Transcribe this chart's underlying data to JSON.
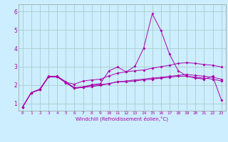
{
  "xlabel": "Windchill (Refroidissement éolien,°C)",
  "bg_color": "#cceeff",
  "line_color": "#aa00aa",
  "grid_color": "#aacccc",
  "xlim": [
    -0.5,
    23.5
  ],
  "ylim": [
    0.6,
    6.4
  ],
  "xticks": [
    0,
    1,
    2,
    3,
    4,
    5,
    6,
    7,
    8,
    9,
    10,
    11,
    12,
    13,
    14,
    15,
    16,
    17,
    18,
    19,
    20,
    21,
    22,
    23
  ],
  "yticks": [
    1,
    2,
    3,
    4,
    5,
    6
  ],
  "series": [
    {
      "x": [
        0,
        1,
        2,
        3,
        4,
        5,
        6,
        7,
        8,
        9,
        10,
        11,
        12,
        13,
        14,
        15,
        16,
        17,
        18,
        19,
        20,
        21,
        22,
        23
      ],
      "y": [
        0.8,
        1.58,
        1.75,
        2.45,
        2.45,
        2.15,
        2.05,
        2.22,
        2.28,
        2.32,
        2.5,
        2.65,
        2.72,
        2.78,
        2.82,
        2.92,
        3.0,
        3.08,
        3.18,
        3.22,
        3.18,
        3.12,
        3.08,
        2.98
      ]
    },
    {
      "x": [
        0,
        1,
        2,
        3,
        4,
        5,
        6,
        7,
        8,
        9,
        10,
        11,
        12,
        13,
        14,
        15,
        16,
        17,
        18,
        19,
        20,
        21,
        22,
        23
      ],
      "y": [
        0.8,
        1.58,
        1.78,
        2.48,
        2.48,
        2.18,
        1.82,
        1.88,
        1.92,
        1.98,
        2.08,
        2.18,
        2.18,
        2.22,
        2.28,
        2.32,
        2.38,
        2.42,
        2.48,
        2.48,
        2.42,
        2.38,
        2.32,
        2.22
      ]
    },
    {
      "x": [
        0,
        1,
        2,
        3,
        4,
        5,
        6,
        7,
        8,
        9,
        10,
        11,
        12,
        13,
        14,
        15,
        16,
        17,
        18,
        19,
        20,
        21,
        22,
        23
      ],
      "y": [
        0.8,
        1.58,
        1.75,
        2.45,
        2.45,
        2.12,
        1.82,
        1.88,
        2.02,
        2.08,
        2.78,
        2.98,
        2.72,
        3.02,
        4.0,
        5.88,
        4.98,
        3.68,
        2.78,
        2.48,
        2.38,
        2.32,
        2.48,
        1.18
      ]
    },
    {
      "x": [
        0,
        1,
        2,
        3,
        4,
        5,
        6,
        7,
        8,
        9,
        10,
        11,
        12,
        13,
        14,
        15,
        16,
        17,
        18,
        19,
        20,
        21,
        22,
        23
      ],
      "y": [
        0.8,
        1.58,
        1.76,
        2.44,
        2.48,
        2.16,
        1.86,
        1.9,
        1.98,
        2.02,
        2.08,
        2.18,
        2.22,
        2.28,
        2.32,
        2.38,
        2.42,
        2.48,
        2.52,
        2.58,
        2.52,
        2.48,
        2.42,
        2.32
      ]
    }
  ]
}
